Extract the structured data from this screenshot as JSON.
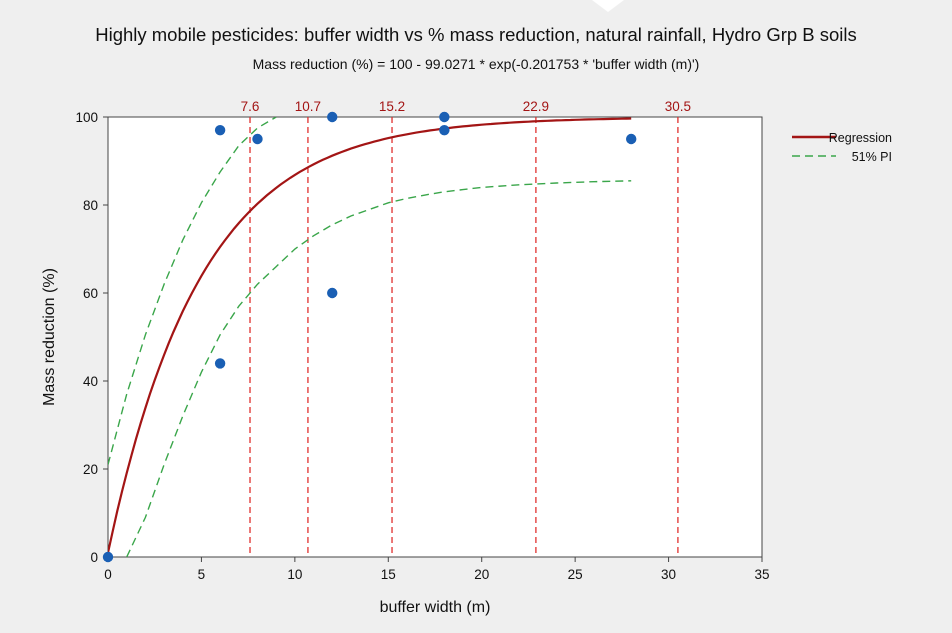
{
  "chart_data": {
    "type": "scatter",
    "title": "Highly mobile pesticides: buffer width vs % mass reduction, natural rainfall, Hydro Grp B soils",
    "subtitle": "Mass reduction (%) = 100 - 99.0271 * exp(-0.201753 * 'buffer width (m)')",
    "xlabel": "buffer width (m)",
    "ylabel": "Mass reduction (%)",
    "xlim": [
      0,
      35
    ],
    "ylim": [
      0,
      100
    ],
    "xticks": [
      0,
      5,
      10,
      15,
      20,
      25,
      30,
      35
    ],
    "yticks": [
      0,
      20,
      40,
      60,
      80,
      100
    ],
    "grid": false,
    "legend_position": "right",
    "points": [
      {
        "x": 0,
        "y": 0
      },
      {
        "x": 6,
        "y": 97
      },
      {
        "x": 6,
        "y": 44
      },
      {
        "x": 8,
        "y": 95
      },
      {
        "x": 12,
        "y": 100
      },
      {
        "x": 12,
        "y": 60
      },
      {
        "x": 18,
        "y": 100
      },
      {
        "x": 18,
        "y": 97
      },
      {
        "x": 28,
        "y": 95
      }
    ],
    "regression": {
      "a": 100,
      "b": 99.0271,
      "k": 0.201753,
      "x_range": [
        0,
        28
      ]
    },
    "pi_upper": [
      [
        0,
        21
      ],
      [
        1,
        37
      ],
      [
        2,
        50.5
      ],
      [
        3,
        62
      ],
      [
        4,
        72
      ],
      [
        5,
        80.5
      ],
      [
        6,
        87.5
      ],
      [
        7,
        93.5
      ],
      [
        8,
        97.5
      ],
      [
        9,
        100
      ]
    ],
    "pi_lower": [
      [
        1,
        0
      ],
      [
        2,
        9
      ],
      [
        3,
        21
      ],
      [
        4,
        32
      ],
      [
        5,
        42
      ],
      [
        6,
        50.5
      ],
      [
        7,
        57
      ],
      [
        8,
        62
      ],
      [
        9,
        66
      ],
      [
        10,
        70
      ],
      [
        11,
        73
      ],
      [
        12,
        75.5
      ],
      [
        13,
        77.5
      ],
      [
        14,
        79
      ],
      [
        15,
        80.5
      ],
      [
        16,
        81.5
      ],
      [
        17,
        82.3
      ],
      [
        18,
        83
      ],
      [
        19,
        83.5
      ],
      [
        20,
        84
      ],
      [
        22,
        84.6
      ],
      [
        24,
        85
      ],
      [
        26,
        85.3
      ],
      [
        28,
        85.5
      ]
    ],
    "reference_lines": [
      {
        "x": 7.6,
        "label": "7.6"
      },
      {
        "x": 10.7,
        "label": "10.7"
      },
      {
        "x": 15.2,
        "label": "15.2"
      },
      {
        "x": 22.9,
        "label": "22.9"
      },
      {
        "x": 30.5,
        "label": "30.5"
      }
    ],
    "legend": [
      {
        "label": "Regression",
        "style": "solid",
        "color": "#a31515"
      },
      {
        "label": "51% PI",
        "style": "dashed",
        "color": "#3aa64a"
      }
    ],
    "colors": {
      "points": "#1a5fb4",
      "regression": "#a31515",
      "pi": "#3aa64a",
      "reference": "#e0302e"
    }
  }
}
